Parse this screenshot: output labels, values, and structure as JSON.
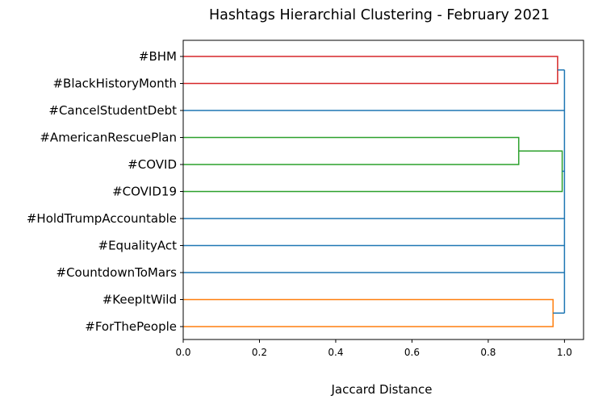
{
  "chart_data": {
    "type": "dendrogram",
    "title": "Hashtags Hierarchial Clustering - February 2021",
    "xlabel": "Jaccard Distance",
    "ylabel": "",
    "xlim": [
      0,
      1.05
    ],
    "xticks": [
      "0.0",
      "0.2",
      "0.4",
      "0.6",
      "0.8",
      "1.0"
    ],
    "grid": false,
    "orientation": "left",
    "leaves": [
      "#BHM",
      "#BlackHistoryMonth",
      "#CancelStudentDebt",
      "#AmericanRescuePlan",
      "#COVID",
      "#COVID19",
      "#HoldTrumpAccountable",
      "#EqualityAct",
      "#CountdownToMars",
      "#KeepItWild",
      "#ForThePeople"
    ],
    "merges": [
      {
        "members": [
          "#AmericanRescuePlan",
          "#COVID"
        ],
        "distance": 0.88,
        "color": "#2ca02c"
      },
      {
        "members": [
          "#AmericanRescuePlan",
          "#COVID",
          "#COVID19"
        ],
        "distance": 0.994,
        "color": "#2ca02c"
      },
      {
        "members": [
          "#KeepItWild",
          "#ForThePeople"
        ],
        "distance": 0.97,
        "color": "#ff7f0e"
      },
      {
        "members": [
          "#BHM",
          "#BlackHistoryMonth"
        ],
        "distance": 0.982,
        "color": "#d62728"
      },
      {
        "members": [
          "all"
        ],
        "distance": 1.0,
        "color": "#1f77b4"
      }
    ],
    "colors": {
      "above_threshold": "#1f77b4",
      "cluster_red": "#d62728",
      "cluster_green": "#2ca02c",
      "cluster_orange": "#ff7f0e"
    }
  }
}
